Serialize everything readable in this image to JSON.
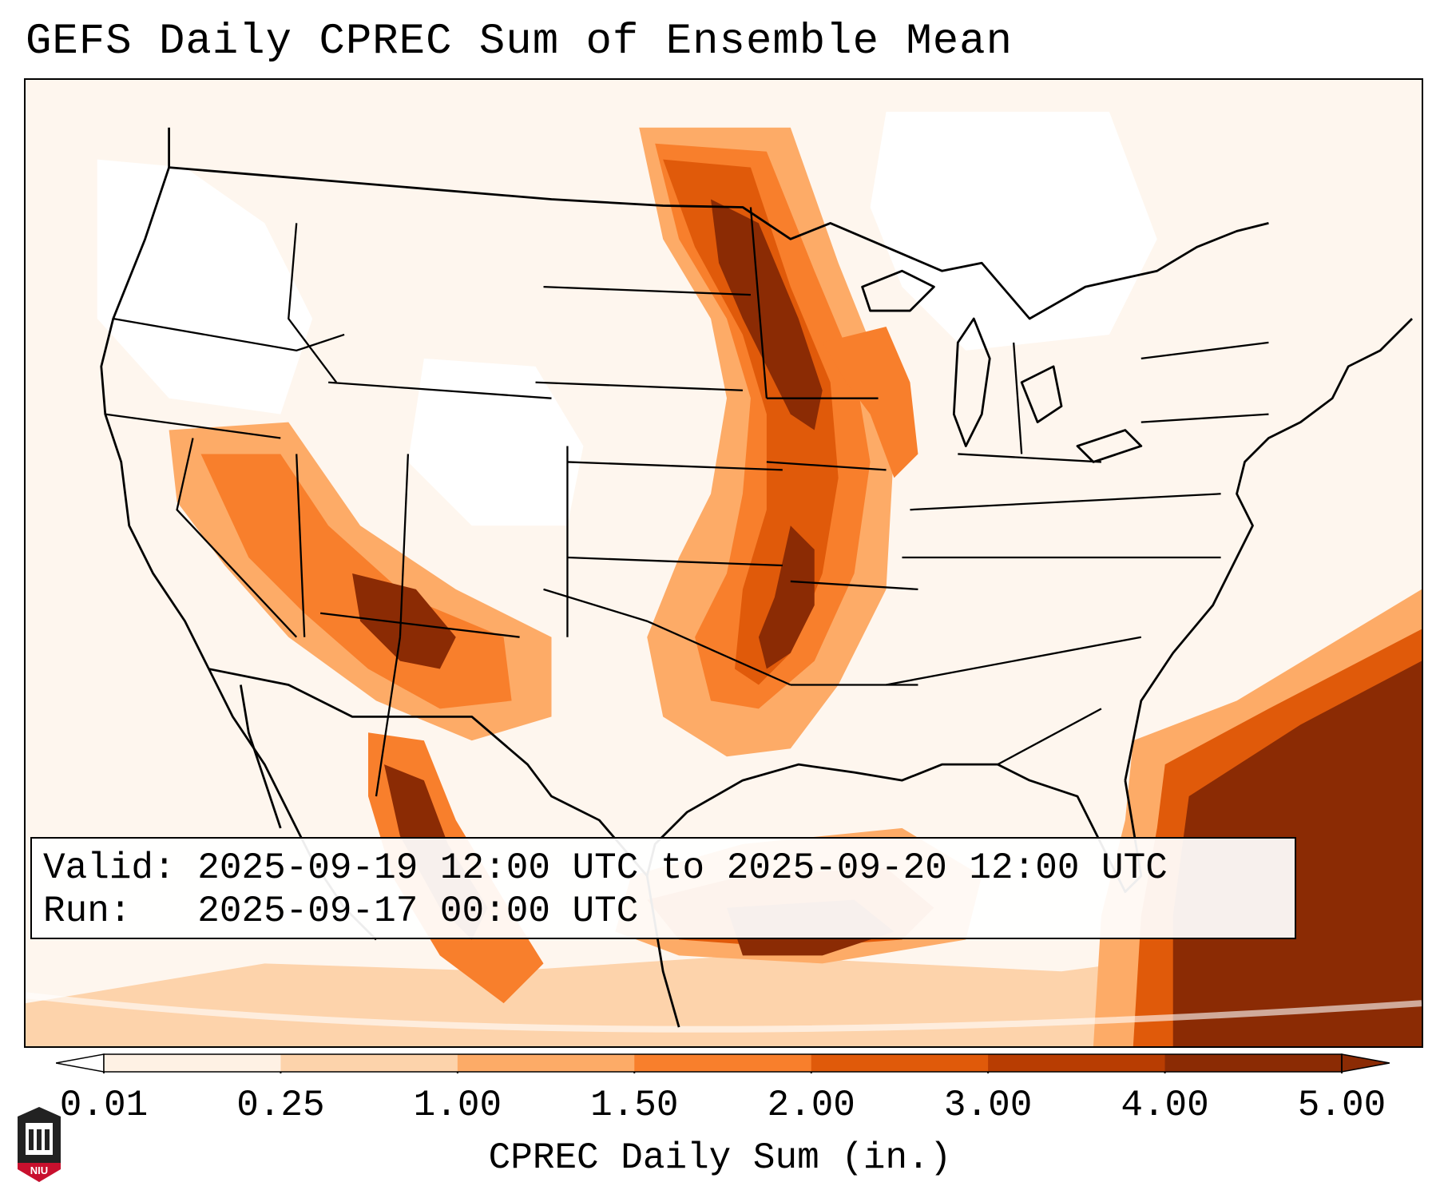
{
  "title": "GEFS Daily CPREC Sum of Ensemble Mean",
  "info": {
    "valid_label": "Valid:",
    "valid_value": "2025-09-19 12:00 UTC to 2025-09-20 12:00 UTC",
    "run_label": "Run:",
    "run_value": "2025-09-17 00:00 UTC"
  },
  "colorbar": {
    "label": "CPREC Daily Sum (in.)",
    "ticks": [
      "0.01",
      "0.25",
      "1.00",
      "1.50",
      "2.00",
      "3.00",
      "4.00",
      "5.00"
    ],
    "colors": [
      "#fef1e4",
      "#fdd3ab",
      "#fdab67",
      "#f87f2c",
      "#e05a0a",
      "#b83d02",
      "#8b2b04"
    ],
    "extend_min_color": "#ffffff",
    "extend_max_color": "#8b2b04"
  },
  "icons": {
    "logo": "niu-logo-icon"
  }
}
